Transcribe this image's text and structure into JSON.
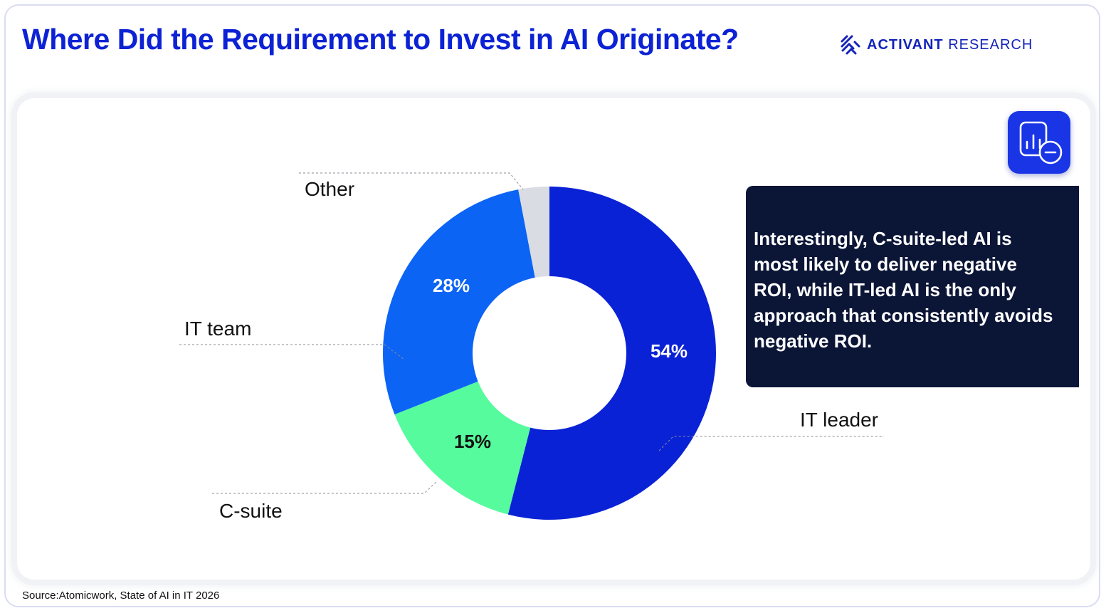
{
  "header": {
    "title": "Where Did the Requirement to Invest in AI Originate?",
    "brand_bold": "ACTIVANT",
    "brand_light": "RESEARCH"
  },
  "callout": {
    "text": "Interestingly, C-suite-led AI is most likely to deliver negative ROI, while IT-led AI is the only approach that consistently avoids negative ROI."
  },
  "badge": {
    "icon": "chart-minus-icon"
  },
  "source": "Source:Atomicwork, State of AI in IT 2026",
  "colors": {
    "title": "#0c22d4",
    "callout_bg": "#0b1536",
    "badge_bg": "#1935e6"
  },
  "chart_data": {
    "type": "pie",
    "variant": "donut",
    "start_angle_deg": 0,
    "direction": "clockwise",
    "slices": [
      {
        "label": "IT leader",
        "value": 54,
        "pct_label": "54%",
        "color": "#0a22d6",
        "label_color": "#ffffff"
      },
      {
        "label": "C-suite",
        "value": 15,
        "pct_label": "15%",
        "color": "#55fb9d",
        "label_color": "#111111"
      },
      {
        "label": "IT team",
        "value": 28,
        "pct_label": "28%",
        "color": "#0c64f5",
        "label_color": "#ffffff"
      },
      {
        "label": "Other",
        "value": 3,
        "pct_label": "",
        "color": "#d9dce3",
        "label_color": "#111111"
      }
    ]
  }
}
